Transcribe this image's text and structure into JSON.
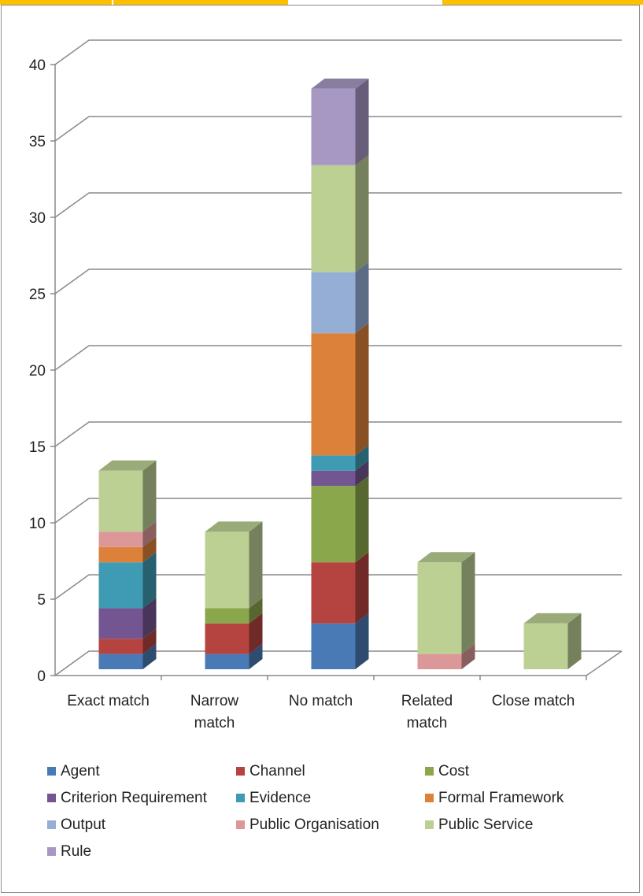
{
  "top_tabs": [
    {
      "color": "#ffc000"
    },
    {
      "color": "#ffc000"
    },
    {
      "color": "#ffffff"
    },
    {
      "color": "#ffc000"
    }
  ],
  "chart_data": {
    "type": "bar",
    "stacked": true,
    "three_d": true,
    "categories": [
      "Exact match",
      "Narrow match",
      "No match",
      "Related match",
      "Close match"
    ],
    "category_lines": [
      [
        "Exact match"
      ],
      [
        "Narrow",
        "match"
      ],
      [
        "No match"
      ],
      [
        "Related",
        "match"
      ],
      [
        "Close match"
      ]
    ],
    "ylim": [
      0,
      40
    ],
    "yticks": [
      0,
      5,
      10,
      15,
      20,
      25,
      30,
      35,
      40
    ],
    "grid": true,
    "legend_position": "bottom",
    "series": [
      {
        "name": "Agent",
        "color": "#4a7ab5",
        "values": [
          1,
          1,
          3,
          0,
          0
        ]
      },
      {
        "name": "Channel",
        "color": "#b5433f",
        "values": [
          1,
          2,
          4,
          0,
          0
        ]
      },
      {
        "name": "Cost",
        "color": "#8aa84b",
        "values": [
          0,
          1,
          5,
          0,
          0
        ]
      },
      {
        "name": "Criterion Requirement",
        "color": "#735591",
        "values": [
          2,
          0,
          1,
          0,
          0
        ]
      },
      {
        "name": "Evidence",
        "color": "#3f9bb3",
        "values": [
          3,
          0,
          1,
          0,
          0
        ]
      },
      {
        "name": "Formal Framework",
        "color": "#dc8139",
        "values": [
          1,
          0,
          8,
          0,
          0
        ]
      },
      {
        "name": "Output",
        "color": "#95aed6",
        "values": [
          0,
          0,
          4,
          0,
          0
        ]
      },
      {
        "name": "Public Organisation",
        "color": "#dc9898",
        "values": [
          1,
          0,
          0,
          1,
          0
        ]
      },
      {
        "name": "Public Service",
        "color": "#bcd094",
        "values": [
          4,
          5,
          7,
          6,
          3
        ]
      },
      {
        "name": "Rule",
        "color": "#a798c3",
        "values": [
          0,
          0,
          5,
          0,
          0
        ]
      }
    ]
  }
}
